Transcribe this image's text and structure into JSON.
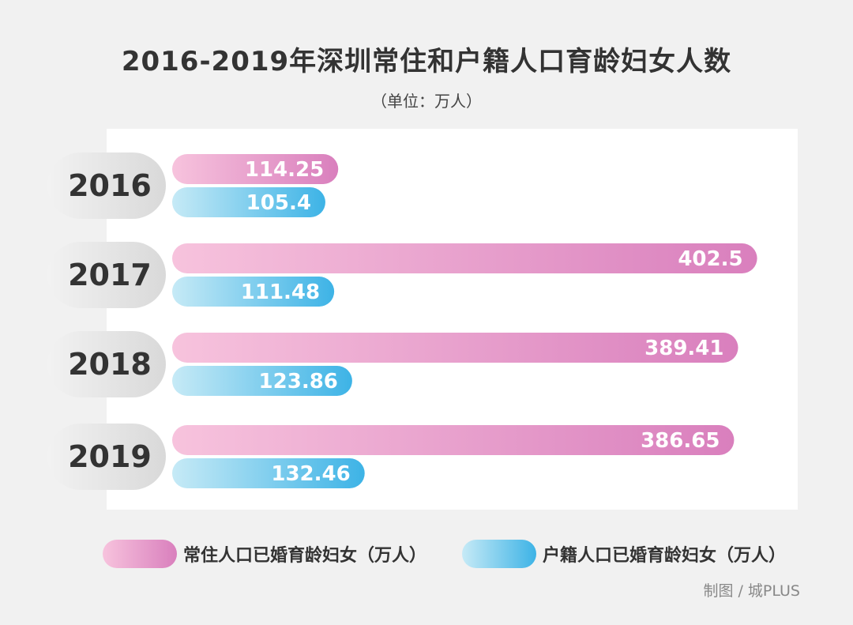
{
  "chart_data": {
    "type": "bar",
    "orientation": "horizontal",
    "title": "2016-2019年深圳常住和户籍人口育龄妇女人数",
    "subtitle": "（单位：万人）",
    "categories": [
      "2016",
      "2017",
      "2018",
      "2019"
    ],
    "series": [
      {
        "name": "常住人口已婚育龄妇女（万人）",
        "values": [
          114.25,
          402.5,
          389.41,
          386.65
        ],
        "value_labels": [
          "114.25",
          "402.5",
          "389.41",
          "386.65"
        ],
        "color_start": "#f7c3dd",
        "color_end": "#d97fbd"
      },
      {
        "name": "户籍人口已婚育龄妇女（万人）",
        "values": [
          105.4,
          111.48,
          123.86,
          132.46
        ],
        "value_labels": [
          "105.4",
          "111.48",
          "123.86",
          "132.46"
        ],
        "color_start": "#c6eaf6",
        "color_end": "#3db3e6"
      }
    ],
    "legend_position": "bottom",
    "grid": false
  },
  "credit": "制图 / 城PLUS"
}
